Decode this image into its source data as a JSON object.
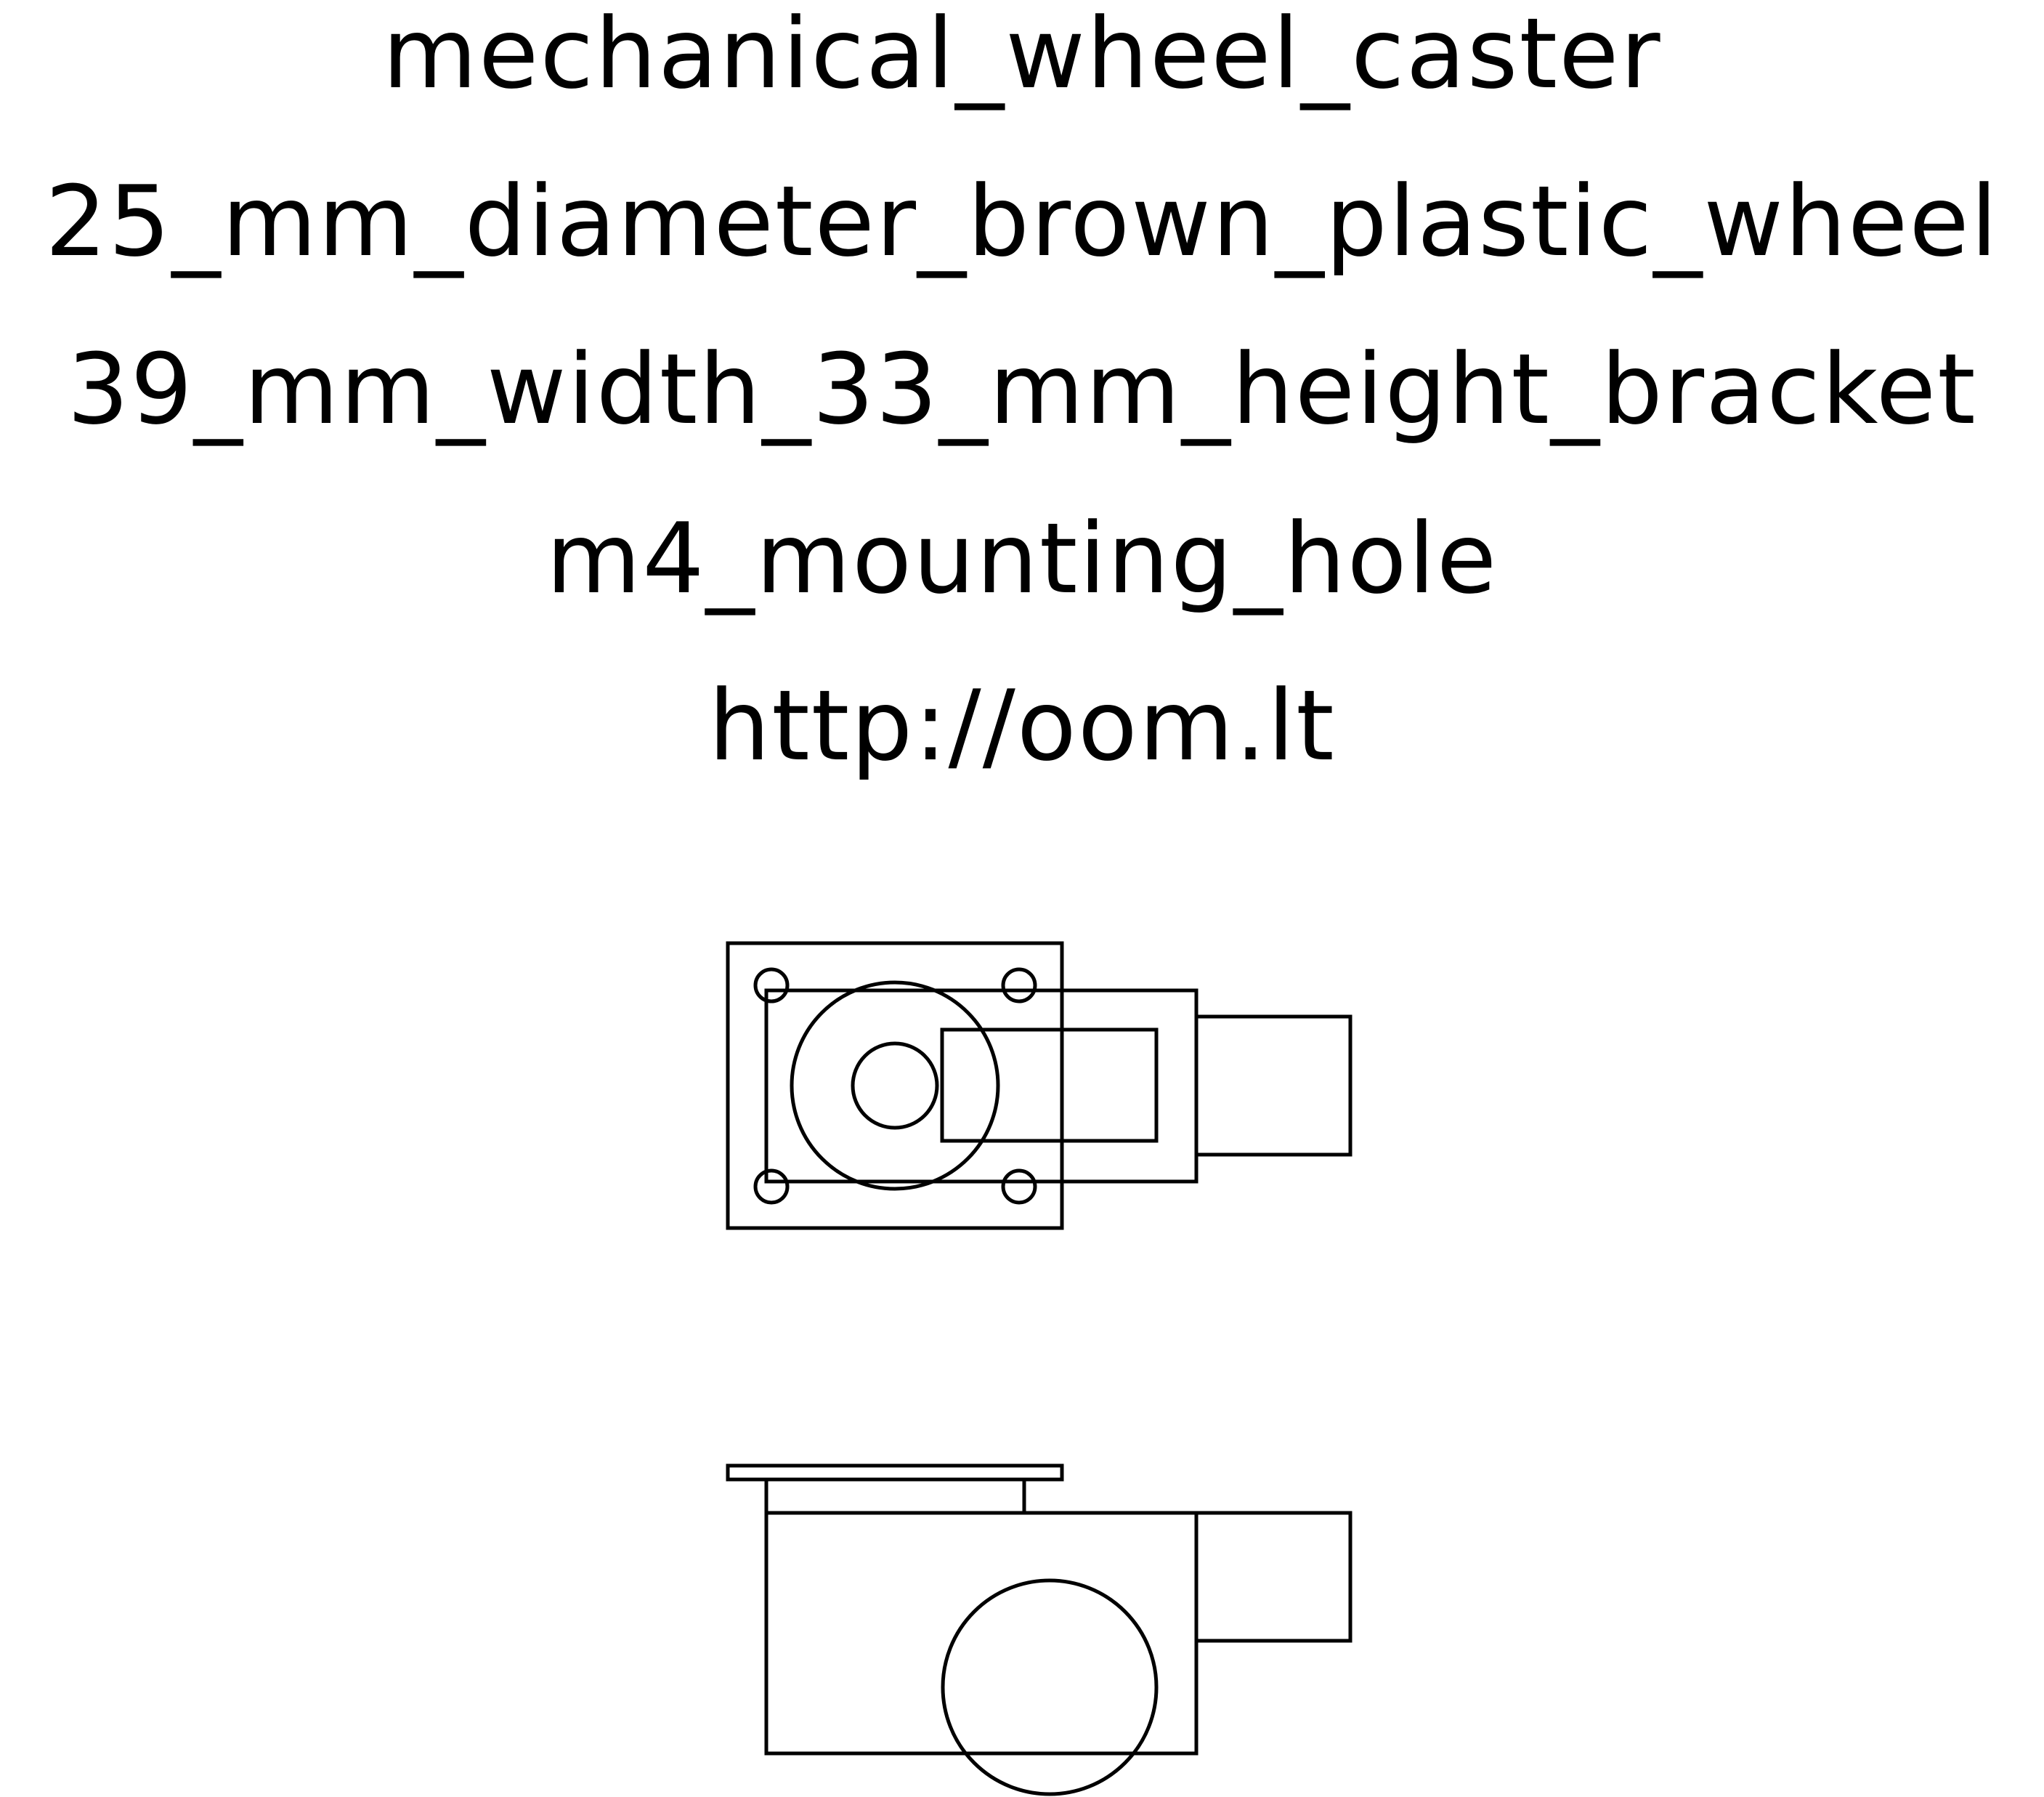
{
  "labels": {
    "title": "mechanical_wheel_caster",
    "wheel": "25_mm_diameter_brown_plastic_wheel",
    "bracket": "39_mm_width_33_mm_height_bracket",
    "mounting": "m4_mounting_hole",
    "url": "http://oom.lt"
  },
  "style": {
    "line_color": "#000000",
    "background": "#ffffff"
  }
}
